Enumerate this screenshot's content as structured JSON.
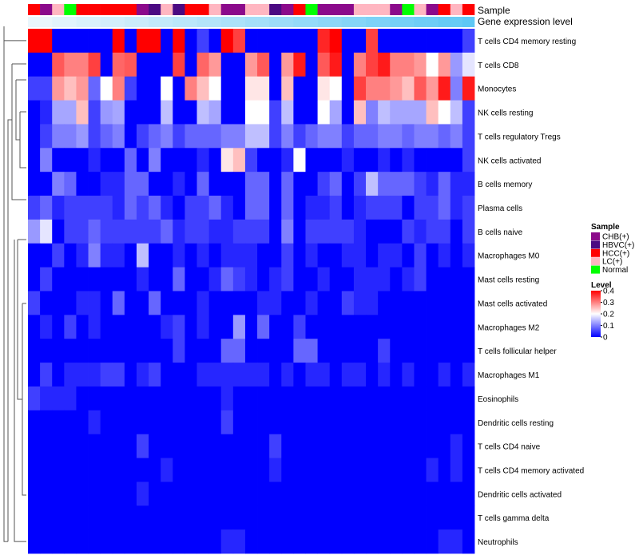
{
  "chart_data": {
    "type": "heatmap",
    "title": "",
    "annotation_labels": {
      "sample": "Sample",
      "gene_expression": "Gene expression level"
    },
    "rows": [
      "T cells CD4 memory resting",
      "T cells CD8",
      "Monocytes",
      "NK cells resting",
      "T cells regulatory  Tregs",
      "NK cells activated",
      "B cells memory",
      "Plasma cells",
      "B cells naive",
      "Macrophages M0",
      "Mast cells resting",
      "Mast cells activated",
      "Macrophages M2",
      "T cells follicular helper",
      "Macrophages M1",
      "Eosinophils",
      "Dendritic cells resting",
      "T cells CD4 naive",
      "T cells CD4 memory activated",
      "Dendritic cells activated",
      "T cells gamma delta",
      "Neutrophils"
    ],
    "sample_groups": [
      "HCC(+)",
      "CHB(+)",
      "LC(+)",
      "Normal",
      "HCC(+)",
      "HCC(+)",
      "HCC(+)",
      "HCC(+)",
      "HCC(+)",
      "CHB(+)",
      "HBVC(+)",
      "LC(+)",
      "HBVC(+)",
      "HCC(+)",
      "HCC(+)",
      "LC(+)",
      "CHB(+)",
      "CHB(+)",
      "LC(+)",
      "LC(+)",
      "HBVC(+)",
      "CHB(+)",
      "HCC(+)",
      "Normal",
      "CHB(+)",
      "CHB(+)",
      "CHB(+)",
      "LC(+)",
      "LC(+)",
      "LC(+)",
      "CHB(+)",
      "Normal",
      "LC(+)",
      "CHB(+)",
      "HCC(+)",
      "LC(+)",
      "HCC(+)"
    ],
    "gene_expression_levels": [
      0.15,
      0.15,
      0.16,
      0.16,
      0.17,
      0.17,
      0.18,
      0.18,
      0.19,
      0.19,
      0.2,
      0.2,
      0.21,
      0.21,
      0.22,
      0.22,
      0.23,
      0.23,
      0.24,
      0.24,
      0.25,
      0.25,
      0.26,
      0.26,
      0.27,
      0.27,
      0.28,
      0.28,
      0.29,
      0.29,
      0.3,
      0.3,
      0.31,
      0.31,
      0.32,
      0.32,
      0.33
    ],
    "values": [
      [
        0.4,
        0.4,
        0.0,
        0.0,
        0.0,
        0.0,
        0.0,
        0.4,
        0.0,
        0.4,
        0.4,
        0.0,
        0.4,
        0.0,
        0.05,
        0.0,
        0.4,
        0.35,
        0.0,
        0.0,
        0.0,
        0.0,
        0.0,
        0.0,
        0.37,
        0.4,
        0.0,
        0.0,
        0.35,
        0.0,
        0.0,
        0.0,
        0.0,
        0.0,
        0.0,
        0.0,
        0.05
      ],
      [
        0.0,
        0.0,
        0.33,
        0.3,
        0.3,
        0.35,
        0.0,
        0.32,
        0.33,
        0.0,
        0.0,
        0.0,
        0.35,
        0.0,
        0.32,
        0.28,
        0.0,
        0.0,
        0.28,
        0.33,
        0.0,
        0.28,
        0.38,
        0.0,
        0.33,
        0.38,
        0.0,
        0.3,
        0.35,
        0.38,
        0.3,
        0.3,
        0.28,
        0.2,
        0.28,
        0.12,
        0.18
      ],
      [
        0.05,
        0.05,
        0.28,
        0.25,
        0.28,
        0.08,
        0.2,
        0.3,
        0.05,
        0.0,
        0.0,
        0.2,
        0.0,
        0.3,
        0.25,
        0.2,
        0.0,
        0.0,
        0.22,
        0.22,
        0.0,
        0.25,
        0.0,
        0.0,
        0.22,
        0.2,
        0.0,
        0.35,
        0.3,
        0.3,
        0.28,
        0.25,
        0.33,
        0.28,
        0.38,
        0.1,
        0.38
      ],
      [
        0.0,
        0.03,
        0.13,
        0.13,
        0.25,
        0.05,
        0.12,
        0.13,
        0.0,
        0.0,
        0.0,
        0.15,
        0.0,
        0.0,
        0.15,
        0.13,
        0.0,
        0.0,
        0.2,
        0.2,
        0.05,
        0.15,
        0.0,
        0.0,
        0.2,
        0.13,
        0.0,
        0.25,
        0.1,
        0.15,
        0.13,
        0.13,
        0.13,
        0.25,
        0.2,
        0.15,
        0.05
      ],
      [
        0.0,
        0.05,
        0.1,
        0.1,
        0.12,
        0.05,
        0.08,
        0.1,
        0.0,
        0.05,
        0.08,
        0.1,
        0.05,
        0.08,
        0.08,
        0.08,
        0.1,
        0.1,
        0.15,
        0.15,
        0.05,
        0.1,
        0.05,
        0.08,
        0.1,
        0.1,
        0.05,
        0.08,
        0.08,
        0.1,
        0.1,
        0.08,
        0.1,
        0.1,
        0.08,
        0.1,
        0.05
      ],
      [
        0.0,
        0.1,
        0.0,
        0.0,
        0.0,
        0.03,
        0.0,
        0.0,
        0.08,
        0.0,
        0.1,
        0.0,
        0.0,
        0.0,
        0.03,
        0.0,
        0.22,
        0.25,
        0.05,
        0.0,
        0.0,
        0.03,
        0.2,
        0.0,
        0.0,
        0.0,
        0.03,
        0.0,
        0.0,
        0.03,
        0.0,
        0.03,
        0.0,
        0.0,
        0.0,
        0.0,
        0.05
      ],
      [
        0.0,
        0.0,
        0.1,
        0.08,
        0.0,
        0.0,
        0.03,
        0.03,
        0.08,
        0.08,
        0.0,
        0.0,
        0.03,
        0.0,
        0.08,
        0.0,
        0.0,
        0.0,
        0.08,
        0.08,
        0.0,
        0.08,
        0.0,
        0.0,
        0.05,
        0.08,
        0.0,
        0.05,
        0.15,
        0.08,
        0.08,
        0.08,
        0.05,
        0.03,
        0.08,
        0.03,
        0.03
      ],
      [
        0.05,
        0.08,
        0.03,
        0.05,
        0.05,
        0.05,
        0.05,
        0.03,
        0.08,
        0.05,
        0.08,
        0.03,
        0.0,
        0.05,
        0.05,
        0.08,
        0.03,
        0.0,
        0.08,
        0.08,
        0.0,
        0.08,
        0.0,
        0.03,
        0.03,
        0.05,
        0.0,
        0.03,
        0.05,
        0.05,
        0.05,
        0.0,
        0.05,
        0.05,
        0.08,
        0.03,
        0.05
      ],
      [
        0.12,
        0.18,
        0.0,
        0.05,
        0.05,
        0.08,
        0.05,
        0.05,
        0.05,
        0.05,
        0.05,
        0.08,
        0.03,
        0.05,
        0.05,
        0.03,
        0.03,
        0.05,
        0.05,
        0.05,
        0.0,
        0.1,
        0.0,
        0.05,
        0.05,
        0.05,
        0.05,
        0.03,
        0.0,
        0.0,
        0.0,
        0.05,
        0.03,
        0.05,
        0.05,
        0.0,
        0.05
      ],
      [
        0.0,
        0.0,
        0.05,
        0.0,
        0.03,
        0.1,
        0.03,
        0.03,
        0.0,
        0.15,
        0.0,
        0.0,
        0.03,
        0.0,
        0.03,
        0.0,
        0.03,
        0.03,
        0.03,
        0.0,
        0.0,
        0.05,
        0.0,
        0.03,
        0.0,
        0.0,
        0.03,
        0.03,
        0.0,
        0.03,
        0.03,
        0.0,
        0.05,
        0.0,
        0.03,
        0.0,
        0.03
      ],
      [
        0.0,
        0.05,
        0.0,
        0.0,
        0.0,
        0.0,
        0.0,
        0.0,
        0.0,
        0.03,
        0.0,
        0.0,
        0.08,
        0.0,
        0.0,
        0.03,
        0.08,
        0.05,
        0.03,
        0.0,
        0.03,
        0.05,
        0.0,
        0.0,
        0.03,
        0.0,
        0.0,
        0.03,
        0.03,
        0.03,
        0.0,
        0.03,
        0.05,
        0.0,
        0.0,
        0.0,
        0.0
      ],
      [
        0.05,
        0.0,
        0.0,
        0.0,
        0.03,
        0.03,
        0.0,
        0.08,
        0.0,
        0.0,
        0.08,
        0.0,
        0.0,
        0.0,
        0.03,
        0.0,
        0.0,
        0.0,
        0.0,
        0.03,
        0.03,
        0.0,
        0.0,
        0.03,
        0.0,
        0.0,
        0.05,
        0.03,
        0.03,
        0.0,
        0.0,
        0.0,
        0.0,
        0.0,
        0.0,
        0.0,
        0.0
      ],
      [
        0.0,
        0.03,
        0.0,
        0.05,
        0.0,
        0.03,
        0.0,
        0.0,
        0.0,
        0.0,
        0.0,
        0.03,
        0.05,
        0.0,
        0.03,
        0.0,
        0.0,
        0.12,
        0.0,
        0.08,
        0.0,
        0.0,
        0.05,
        0.0,
        0.0,
        0.0,
        0.0,
        0.0,
        0.0,
        0.0,
        0.0,
        0.0,
        0.0,
        0.0,
        0.0,
        0.0,
        0.0
      ],
      [
        0.0,
        0.0,
        0.0,
        0.0,
        0.0,
        0.0,
        0.0,
        0.0,
        0.0,
        0.0,
        0.0,
        0.0,
        0.05,
        0.0,
        0.0,
        0.0,
        0.08,
        0.08,
        0.0,
        0.0,
        0.0,
        0.0,
        0.08,
        0.08,
        0.0,
        0.0,
        0.0,
        0.0,
        0.0,
        0.05,
        0.0,
        0.0,
        0.0,
        0.0,
        0.0,
        0.0,
        0.0
      ],
      [
        0.0,
        0.05,
        0.0,
        0.03,
        0.03,
        0.03,
        0.05,
        0.05,
        0.0,
        0.03,
        0.05,
        0.0,
        0.0,
        0.0,
        0.03,
        0.03,
        0.03,
        0.03,
        0.03,
        0.03,
        0.0,
        0.03,
        0.0,
        0.03,
        0.03,
        0.0,
        0.03,
        0.03,
        0.0,
        0.03,
        0.0,
        0.03,
        0.0,
        0.0,
        0.03,
        0.0,
        0.03
      ],
      [
        0.05,
        0.03,
        0.03,
        0.03,
        0.0,
        0.0,
        0.0,
        0.0,
        0.0,
        0.0,
        0.0,
        0.0,
        0.0,
        0.0,
        0.0,
        0.0,
        0.03,
        0.0,
        0.0,
        0.0,
        0.0,
        0.0,
        0.0,
        0.0,
        0.0,
        0.0,
        0.0,
        0.0,
        0.0,
        0.0,
        0.0,
        0.0,
        0.0,
        0.0,
        0.0,
        0.0,
        0.0
      ],
      [
        0.0,
        0.0,
        0.0,
        0.0,
        0.0,
        0.03,
        0.0,
        0.0,
        0.0,
        0.0,
        0.0,
        0.0,
        0.0,
        0.0,
        0.0,
        0.0,
        0.05,
        0.0,
        0.0,
        0.0,
        0.0,
        0.0,
        0.0,
        0.0,
        0.0,
        0.0,
        0.0,
        0.0,
        0.0,
        0.0,
        0.0,
        0.0,
        0.0,
        0.0,
        0.0,
        0.0,
        0.0
      ],
      [
        0.0,
        0.0,
        0.0,
        0.0,
        0.0,
        0.0,
        0.0,
        0.0,
        0.0,
        0.05,
        0.0,
        0.0,
        0.0,
        0.0,
        0.0,
        0.0,
        0.0,
        0.0,
        0.0,
        0.0,
        0.05,
        0.0,
        0.0,
        0.0,
        0.0,
        0.0,
        0.0,
        0.0,
        0.0,
        0.0,
        0.0,
        0.0,
        0.0,
        0.0,
        0.0,
        0.03,
        0.0
      ],
      [
        0.0,
        0.0,
        0.0,
        0.0,
        0.0,
        0.0,
        0.0,
        0.0,
        0.0,
        0.0,
        0.0,
        0.03,
        0.0,
        0.0,
        0.0,
        0.0,
        0.0,
        0.0,
        0.0,
        0.0,
        0.03,
        0.0,
        0.0,
        0.0,
        0.0,
        0.0,
        0.0,
        0.0,
        0.0,
        0.0,
        0.0,
        0.0,
        0.0,
        0.03,
        0.0,
        0.03,
        0.0
      ],
      [
        0.0,
        0.0,
        0.0,
        0.0,
        0.0,
        0.0,
        0.0,
        0.0,
        0.0,
        0.03,
        0.0,
        0.0,
        0.0,
        0.0,
        0.0,
        0.0,
        0.0,
        0.0,
        0.0,
        0.0,
        0.0,
        0.0,
        0.0,
        0.0,
        0.0,
        0.0,
        0.0,
        0.0,
        0.0,
        0.0,
        0.0,
        0.0,
        0.0,
        0.0,
        0.0,
        0.0,
        0.0
      ],
      [
        0.0,
        0.0,
        0.0,
        0.0,
        0.0,
        0.0,
        0.0,
        0.0,
        0.0,
        0.0,
        0.0,
        0.0,
        0.0,
        0.0,
        0.0,
        0.0,
        0.0,
        0.0,
        0.0,
        0.0,
        0.0,
        0.0,
        0.0,
        0.0,
        0.0,
        0.0,
        0.0,
        0.0,
        0.0,
        0.0,
        0.0,
        0.0,
        0.0,
        0.0,
        0.0,
        0.0,
        0.0
      ],
      [
        0.0,
        0.0,
        0.0,
        0.0,
        0.0,
        0.0,
        0.0,
        0.0,
        0.0,
        0.0,
        0.0,
        0.0,
        0.0,
        0.0,
        0.0,
        0.0,
        0.03,
        0.03,
        0.0,
        0.0,
        0.0,
        0.0,
        0.0,
        0.0,
        0.0,
        0.0,
        0.0,
        0.0,
        0.0,
        0.0,
        0.0,
        0.0,
        0.0,
        0.0,
        0.03,
        0.03,
        0.0
      ]
    ],
    "color_scale": {
      "min": 0.0,
      "max": 0.4,
      "colors": [
        "#0000ff",
        "#ffffff",
        "#ff0000"
      ]
    },
    "legend": {
      "sample_title": "Sample",
      "sample_entries": [
        {
          "label": "CHB(+)",
          "color": "#8b0a8b"
        },
        {
          "label": "HBVC(+)",
          "color": "#4b0a82"
        },
        {
          "label": "HCC(+)",
          "color": "#ff0000"
        },
        {
          "label": "LC(+)",
          "color": "#ffb6c1"
        },
        {
          "label": "Normal",
          "color": "#00ff00"
        }
      ],
      "level_title": "Level",
      "level_ticks": [
        "0.4",
        "0.3",
        "0.2",
        "0.1",
        "0"
      ],
      "level_tick_values": [
        0.4,
        0.3,
        0.2,
        0.1,
        0.0
      ]
    },
    "gene_bar_colors": [
      "#eaf6fc",
      "#5ec8f5"
    ],
    "legend_placement": "right"
  }
}
